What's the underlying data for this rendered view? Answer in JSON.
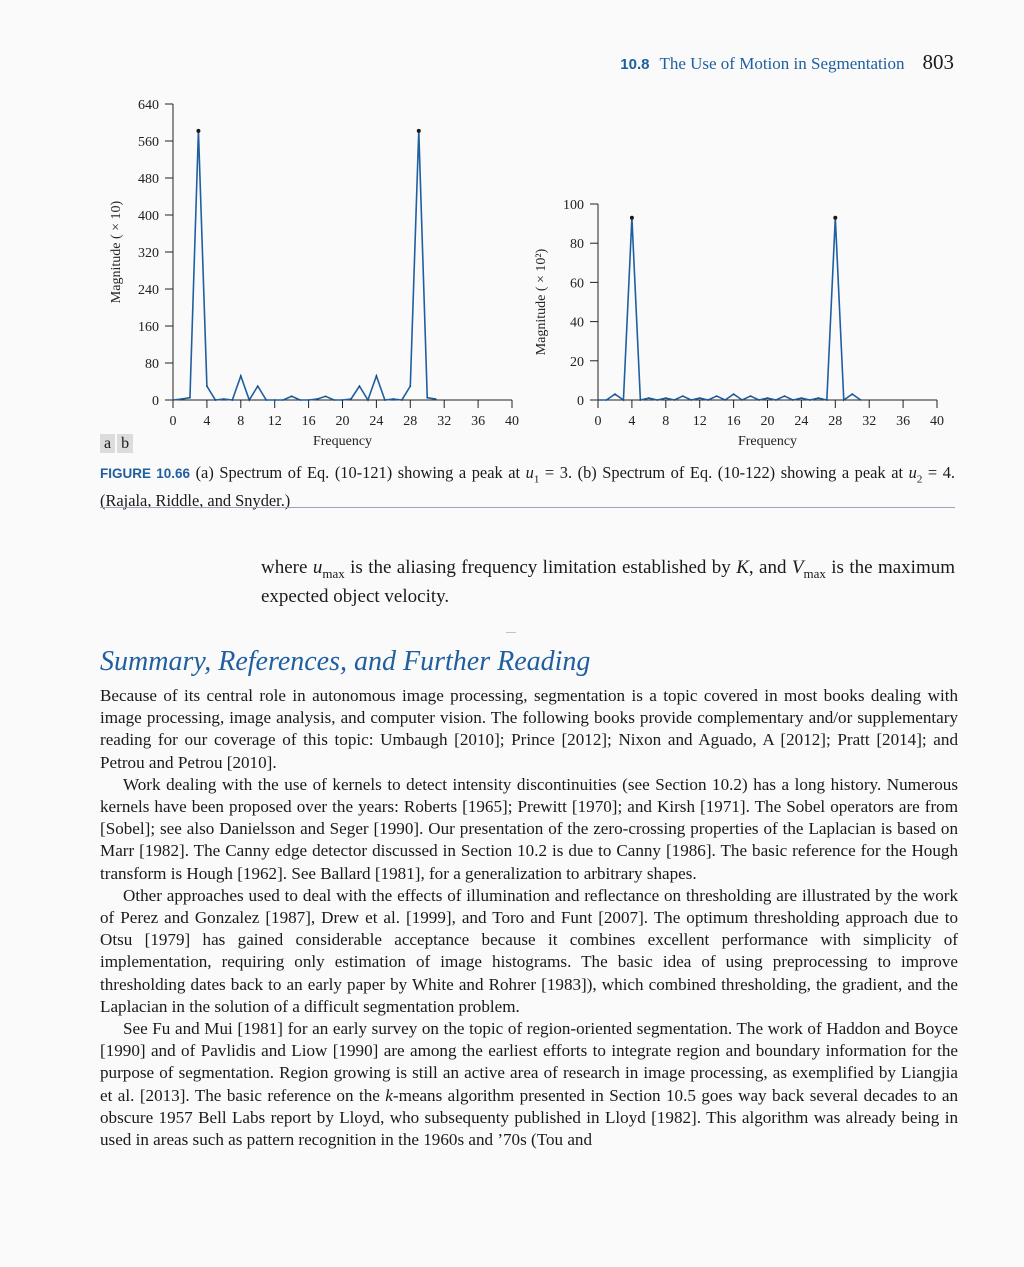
{
  "header": {
    "section_number": "10.8",
    "section_title": "The Use of Motion in Segmentation",
    "page_number": "803"
  },
  "figure": {
    "panel_labels": [
      "a",
      "b"
    ],
    "caption_label": "FIGURE 10.66",
    "caption_p1": "(a) Spectrum of Eq. (10-121) showing a peak at ",
    "caption_u1": "u",
    "caption_sub1": "1",
    "caption_p2": " = 3. (b) Spectrum of Eq. (10-122) showing a peak at ",
    "caption_u2": "u",
    "caption_sub2": "2",
    "caption_p3": " = 4.  (Rajala, Riddle, and Snyder.)"
  },
  "chart_data": [
    {
      "type": "line",
      "xlabel": "Frequency",
      "ylabel": "Magnitude ( × 10)",
      "xlim": [
        0,
        40
      ],
      "ylim": [
        0,
        640
      ],
      "xticks": [
        0,
        4,
        8,
        12,
        16,
        20,
        24,
        28,
        32,
        36,
        40
      ],
      "yticks": [
        0,
        80,
        160,
        240,
        320,
        400,
        480,
        560,
        640
      ],
      "x": [
        0,
        1,
        2,
        3,
        4,
        5,
        6,
        7,
        8,
        9,
        10,
        11,
        12,
        13,
        14,
        15,
        16,
        17,
        18,
        19,
        20,
        21,
        22,
        23,
        24,
        25,
        26,
        27,
        28,
        29,
        30,
        31
      ],
      "y": [
        0,
        2,
        5,
        582,
        30,
        0,
        2,
        0,
        52,
        0,
        30,
        0,
        0,
        0,
        8,
        0,
        0,
        2,
        8,
        0,
        0,
        2,
        30,
        0,
        52,
        0,
        2,
        0,
        30,
        582,
        5,
        2
      ],
      "markers": [
        {
          "x": 3,
          "y": 582
        },
        {
          "x": 29,
          "y": 582
        }
      ]
    },
    {
      "type": "line",
      "xlabel": "Frequency",
      "ylabel": "Magnitude ( × 10²)",
      "xlim": [
        0,
        40
      ],
      "ylim": [
        0,
        100
      ],
      "xticks": [
        0,
        4,
        8,
        12,
        16,
        20,
        24,
        28,
        32,
        36,
        40
      ],
      "yticks": [
        0,
        20,
        40,
        60,
        80,
        100
      ],
      "x": [
        0,
        1,
        2,
        3,
        4,
        5,
        6,
        7,
        8,
        9,
        10,
        11,
        12,
        13,
        14,
        15,
        16,
        17,
        18,
        19,
        20,
        21,
        22,
        23,
        24,
        25,
        26,
        27,
        28,
        29,
        30,
        31
      ],
      "y": [
        0,
        0,
        3,
        0,
        93,
        0,
        1,
        0,
        1,
        0,
        2,
        0,
        1,
        0,
        2,
        0,
        3,
        0,
        2,
        0,
        1,
        0,
        2,
        0,
        1,
        0,
        1,
        0,
        93,
        0,
        3,
        0
      ],
      "markers": [
        {
          "x": 4,
          "y": 93
        },
        {
          "x": 28,
          "y": 93
        }
      ]
    }
  ],
  "where": {
    "t1": "where ",
    "u": "u",
    "umax_sub": "max",
    "t2": " is the aliasing frequency limitation established by ",
    "K": "K",
    "t3": ", and ",
    "V": "V",
    "vmax_sub": "max",
    "t4": " is the maximum expected object velocity."
  },
  "section": {
    "title": "Summary, References, and Further Reading",
    "para1": "Because of its central role in autonomous image processing, segmentation is a topic covered in most books dealing with image processing, image analysis, and computer vision. The following books provide complementary and/or supplementary reading for our coverage of this topic: Umbaugh [2010]; Prince [2012]; Nixon and Aguado, A [2012]; Pratt [2014]; and Petrou and Petrou [2010].",
    "para2": "Work dealing with the use of kernels to detect intensity discontinuities (see Section 10.2) has a long history. Numerous kernels have been proposed over the years: Roberts [1965]; Prewitt [1970]; and Kirsh [1971]. The Sobel operators are from [Sobel]; see also Danielsson and Seger [1990]. Our presentation of the zero-crossing properties of the Laplacian is based on Marr [1982]. The Canny edge detector discussed in Section 10.2 is due to Canny [1986]. The basic reference for the Hough transform is Hough [1962]. See Ballard [1981], for a generalization to arbitrary shapes.",
    "para3": "Other approaches used to deal with the effects of illumination and reflectance on thresholding are illustrated by the work of Perez and Gonzalez [1987], Drew et al. [1999], and Toro and Funt [2007]. The optimum thresholding approach due to Otsu [1979] has gained considerable acceptance because it combines excellent performance with simplicity of implementation, requiring only estimation of image histograms. The basic idea of using preprocessing to improve thresholding dates back to an early paper by White and Rohrer [1983]), which combined thresholding, the gradient, and the Laplacian in the solution of a difficult segmentation problem.",
    "para4_a": "See Fu and Mui [1981] for an early survey on the topic of region-oriented segmentation. The work of Haddon and Boyce [1990] and of Pavlidis and Liow [1990] are among the earliest efforts to integrate region and boundary information for the purpose of segmentation. Region growing is still an active area of research in image processing, as exemplified by Liangjia et al. [2013]. The basic reference on the ",
    "para4_k": "k",
    "para4_b": "-means algorithm presented in Section 10.5 goes way back several decades to an obscure 1957 Bell Labs report by Lloyd, who subsequenty published in Lloyd [1982]. This algorithm was already being in used in areas such as pattern recognition in the 1960s and ’70s (Tou and"
  }
}
